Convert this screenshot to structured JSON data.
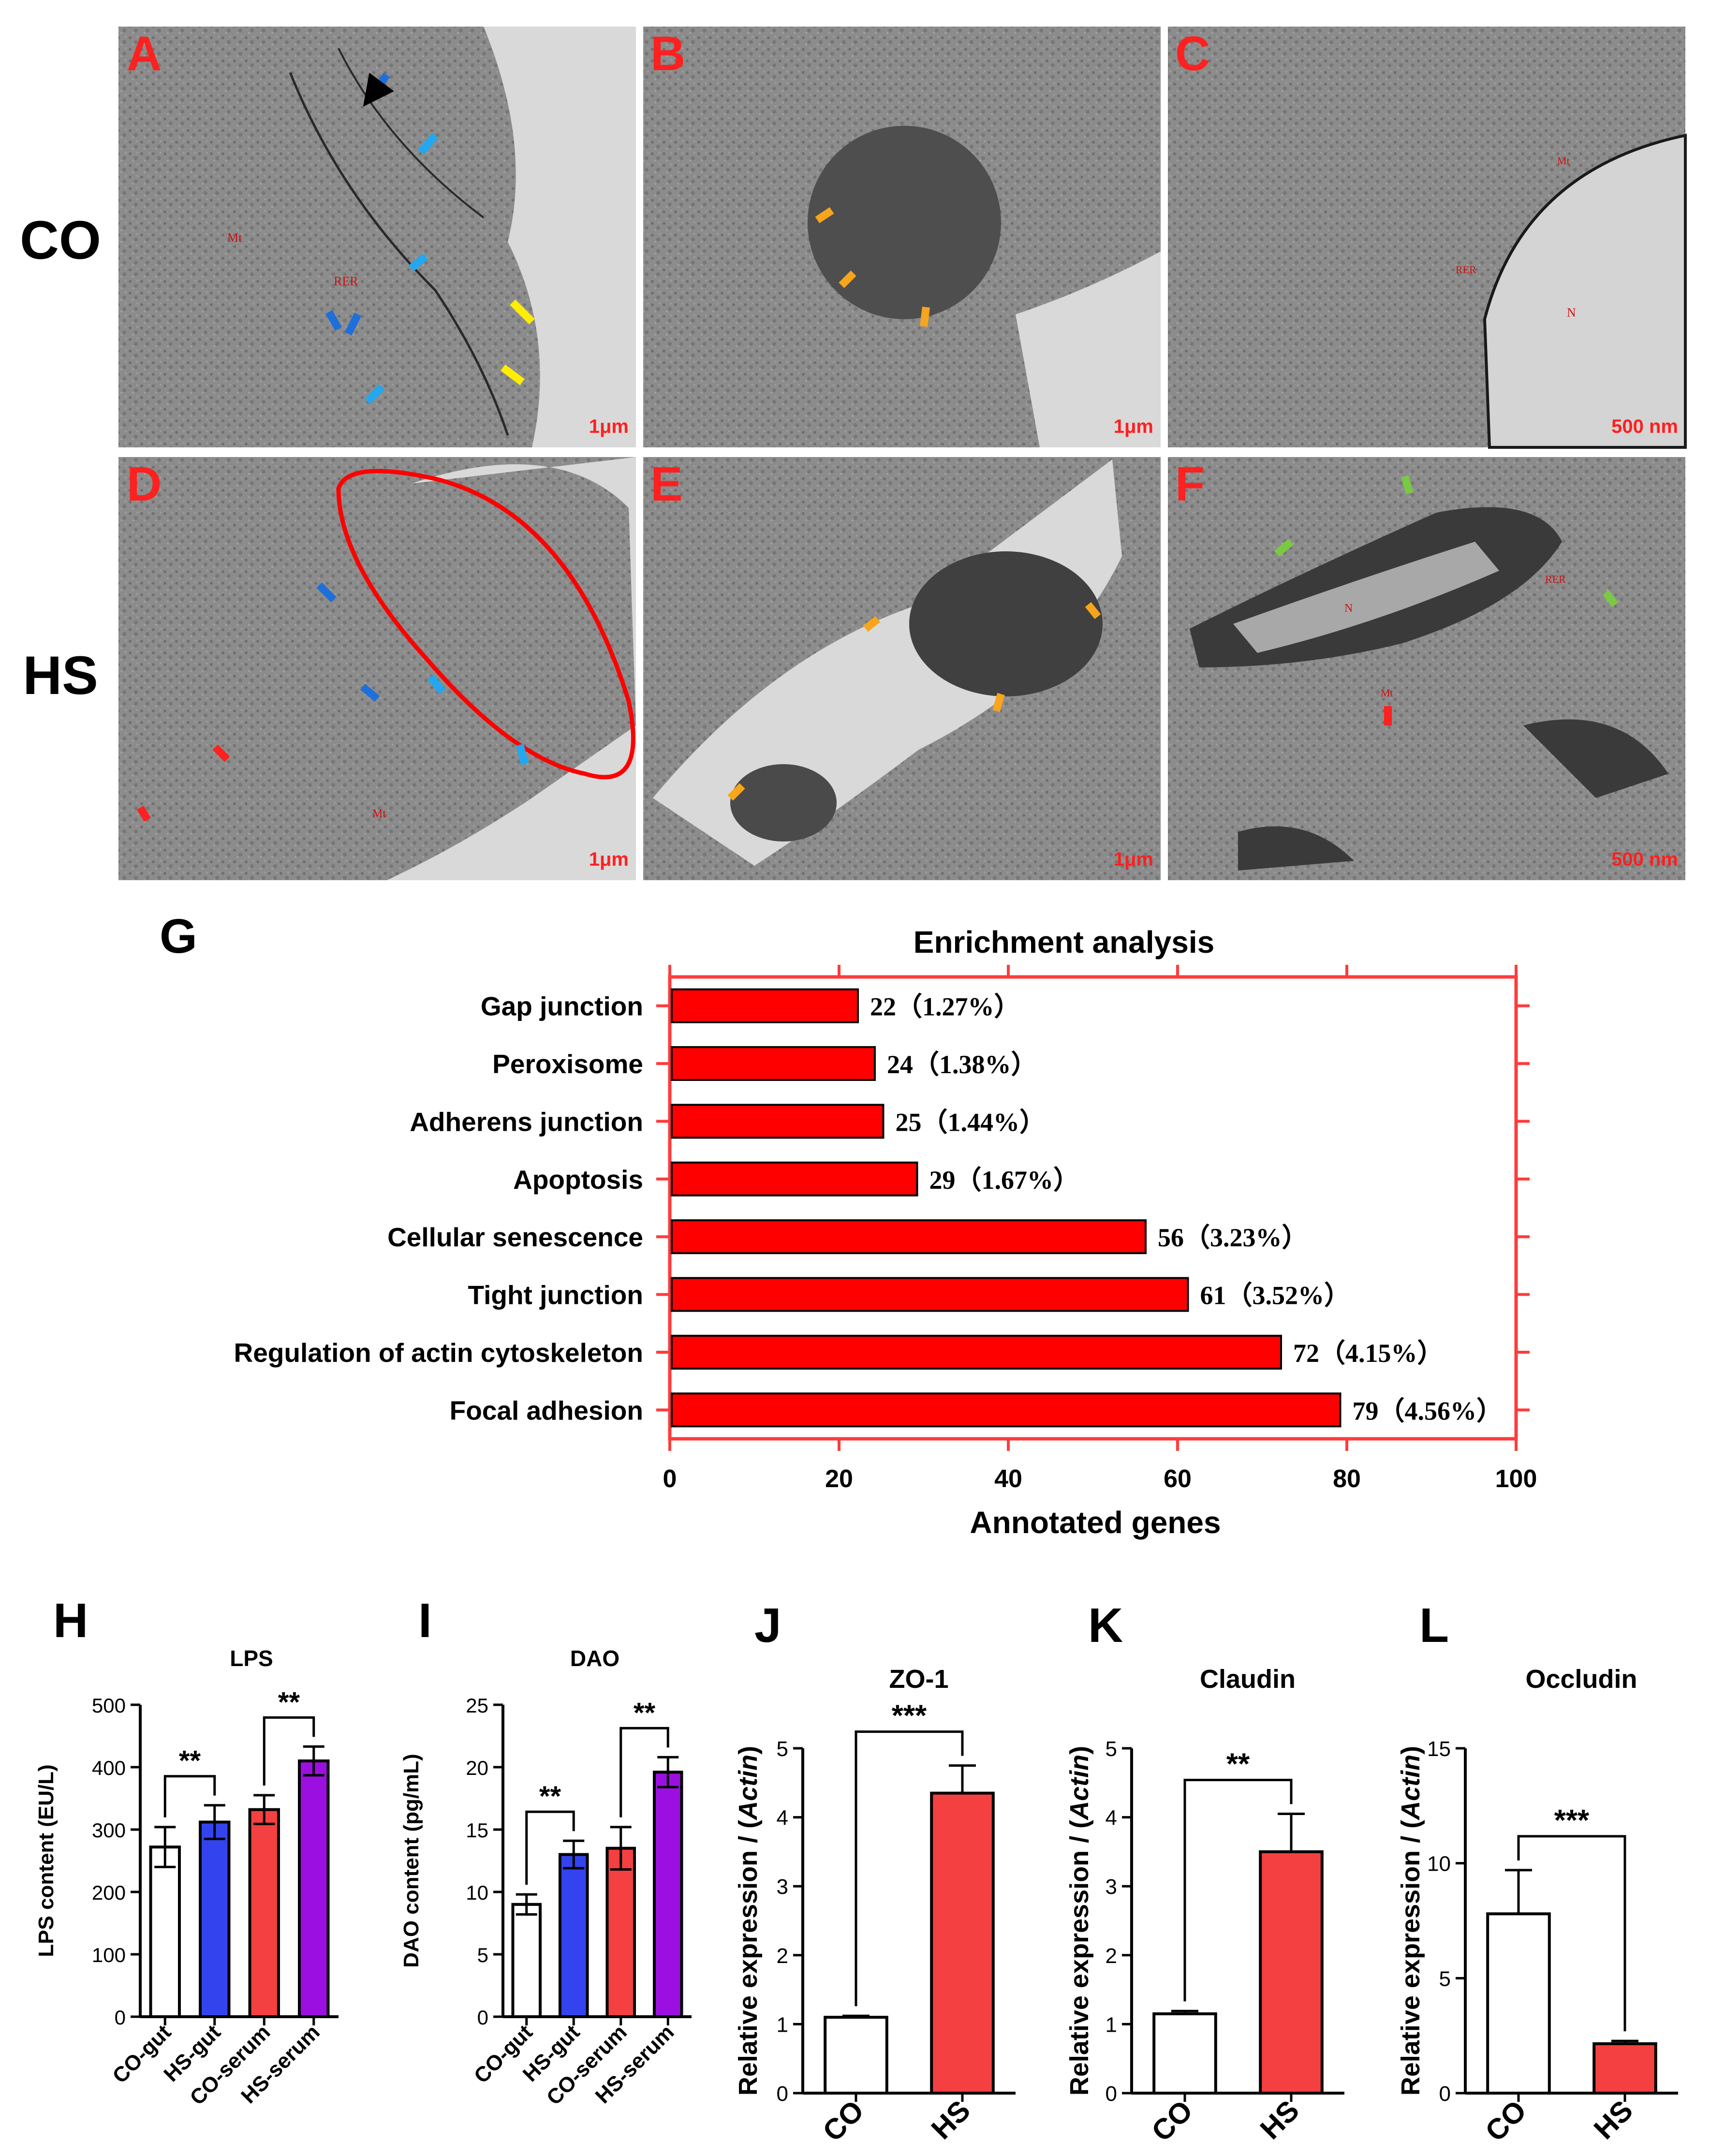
{
  "row_labels": [
    "CO",
    "HS"
  ],
  "micrographs": [
    {
      "letter": "A",
      "scale": "1μm",
      "tags": [
        "Mt",
        "RER"
      ]
    },
    {
      "letter": "B",
      "scale": "1μm",
      "tags": []
    },
    {
      "letter": "C",
      "scale": "500 nm",
      "tags": [
        "Mt",
        "RER",
        "N"
      ]
    },
    {
      "letter": "D",
      "scale": "1μm",
      "tags": [
        "Mt"
      ]
    },
    {
      "letter": "E",
      "scale": "1μm",
      "tags": []
    },
    {
      "letter": "F",
      "scale": "500 nm",
      "tags": [
        "N",
        "RER",
        "Mt"
      ]
    }
  ],
  "colors": {
    "red": "#ff0000",
    "bar_red": "#ff0000",
    "axis_red": "#ff3b3b",
    "blue": "#1e6fd9",
    "lightblue": "#21a8f0",
    "yellow": "#ffee00",
    "orange": "#f7a51c",
    "green": "#7ac943",
    "purple": "#9b10e0",
    "mid_red": "#f44040",
    "mid_blue": "#3344ee"
  },
  "panel_g": {
    "letter": "G",
    "chart_data": {
      "type": "bar",
      "orientation": "horizontal",
      "title": "Enrichment analysis",
      "xlabel": "Annotated genes",
      "xlim": [
        0,
        100
      ],
      "xticks": [
        "0",
        "20",
        "40",
        "60",
        "80",
        "100"
      ],
      "categories": [
        "Gap junction",
        "Peroxisome",
        "Adherens junction",
        "Apoptosis",
        "Cellular senescence",
        "Tight junction",
        "Regulation of actin cytoskeleton",
        "Focal adhesion"
      ],
      "values": [
        22,
        24,
        25,
        29,
        56,
        61,
        72,
        79
      ],
      "data_labels": [
        "22（1.27%）",
        "24（1.38%）",
        "25（1.44%）",
        "29（1.67%）",
        "56（3.23%）",
        "61（3.52%）",
        "72（4.15%）",
        "79（4.56%）"
      ]
    }
  },
  "panel_h": {
    "letter": "H",
    "chart_data": {
      "type": "bar",
      "title": "LPS",
      "ylabel": "LPS content (EU/L)",
      "ylim": [
        0,
        500
      ],
      "yticks": [
        "0",
        "100",
        "200",
        "300",
        "400",
        "500"
      ],
      "categories": [
        "CO-gut",
        "HS-gut",
        "CO-serum",
        "HS-serum"
      ],
      "values": [
        272,
        312,
        332,
        410
      ],
      "errors": [
        32,
        27,
        23,
        23
      ],
      "bar_colors": [
        "#ffffff",
        "#3344ee",
        "#f44040",
        "#9b10e0"
      ],
      "significance": [
        {
          "pair": [
            0,
            1
          ],
          "label": "**"
        },
        {
          "pair": [
            2,
            3
          ],
          "label": "**"
        }
      ]
    }
  },
  "panel_i": {
    "letter": "I",
    "chart_data": {
      "type": "bar",
      "title": "DAO",
      "ylabel": "DAO content (pg/mL)",
      "ylim": [
        0,
        25
      ],
      "yticks": [
        "0",
        "5",
        "10",
        "15",
        "20",
        "25"
      ],
      "categories": [
        "CO-gut",
        "HS-gut",
        "CO-serum",
        "HS-serum"
      ],
      "values": [
        9.0,
        13.0,
        13.5,
        19.6
      ],
      "errors": [
        0.8,
        1.1,
        1.7,
        1.2
      ],
      "bar_colors": [
        "#ffffff",
        "#3344ee",
        "#f44040",
        "#9b10e0"
      ],
      "significance": [
        {
          "pair": [
            0,
            1
          ],
          "label": "**"
        },
        {
          "pair": [
            2,
            3
          ],
          "label": "**"
        }
      ]
    }
  },
  "panel_j": {
    "letter": "J",
    "chart_data": {
      "type": "bar",
      "title": "ZO-1",
      "ylabel_main": "Relative expression / (",
      "ylabel_ital": "Actin",
      "ylabel_end": ")",
      "ylim": [
        0,
        5
      ],
      "yticks": [
        "0",
        "1",
        "2",
        "3",
        "4",
        "5"
      ],
      "categories": [
        "CO",
        "HS"
      ],
      "values": [
        1.1,
        4.35
      ],
      "errors": [
        0.02,
        0.4
      ],
      "bar_colors": [
        "#ffffff",
        "#f44040"
      ],
      "significance": [
        {
          "pair": [
            0,
            1
          ],
          "label": "***"
        }
      ]
    }
  },
  "panel_k": {
    "letter": "K",
    "chart_data": {
      "type": "bar",
      "title": "Claudin",
      "ylabel_main": "Relative expression / (",
      "ylabel_ital": "Actin",
      "ylabel_end": ")",
      "ylim": [
        0,
        5
      ],
      "yticks": [
        "0",
        "1",
        "2",
        "3",
        "4",
        "5"
      ],
      "categories": [
        "CO",
        "HS"
      ],
      "values": [
        1.15,
        3.5
      ],
      "errors": [
        0.04,
        0.55
      ],
      "bar_colors": [
        "#ffffff",
        "#f44040"
      ],
      "significance": [
        {
          "pair": [
            0,
            1
          ],
          "label": "**"
        }
      ]
    }
  },
  "panel_l": {
    "letter": "L",
    "chart_data": {
      "type": "bar",
      "title": "Occludin",
      "ylabel_main": "Relative expression / (",
      "ylabel_ital": "Actin",
      "ylabel_end": ")",
      "ylim": [
        0,
        15
      ],
      "yticks": [
        "0",
        "5",
        "10",
        "15"
      ],
      "categories": [
        "CO",
        "HS"
      ],
      "values": [
        7.8,
        2.15
      ],
      "errors": [
        1.9,
        0.12
      ],
      "bar_colors": [
        "#ffffff",
        "#f44040"
      ],
      "significance": [
        {
          "pair": [
            0,
            1
          ],
          "label": "***"
        }
      ]
    }
  }
}
